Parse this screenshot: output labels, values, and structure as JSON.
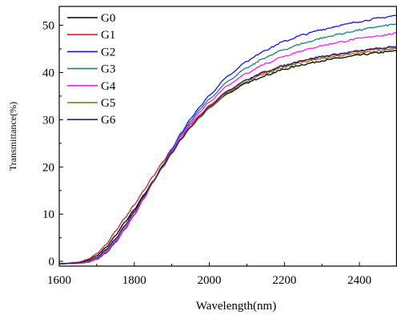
{
  "chart_data": {
    "type": "line",
    "title": "",
    "xlabel": "Wavelength(nm)",
    "ylabel": "Transmittance(%)",
    "xlim": [
      1600,
      2500
    ],
    "ylim": [
      -1,
      54
    ],
    "xticks": [
      1600,
      1800,
      2000,
      2200,
      2400
    ],
    "yticks": [
      0,
      10,
      20,
      30,
      40,
      50
    ],
    "grid": false,
    "legend_position": "top-left",
    "x": [
      1600,
      1650,
      1675,
      1700,
      1725,
      1750,
      1775,
      1800,
      1825,
      1850,
      1875,
      1900,
      1925,
      1950,
      1975,
      2000,
      2050,
      2100,
      2150,
      2200,
      2250,
      2300,
      2350,
      2400,
      2450,
      2500
    ],
    "series": [
      {
        "name": "G0",
        "color": "#000000",
        "values": [
          -0.5,
          -0.3,
          0.3,
          1.2,
          3.0,
          5.5,
          8.3,
          11.0,
          14.0,
          17.0,
          20.0,
          23.0,
          26.0,
          28.4,
          30.5,
          32.5,
          35.6,
          37.8,
          39.4,
          40.7,
          41.7,
          42.5,
          43.1,
          43.7,
          44.2,
          44.6
        ]
      },
      {
        "name": "G1",
        "color": "#e41a1c",
        "values": [
          -0.5,
          -0.2,
          0.4,
          1.6,
          3.6,
          6.4,
          9.2,
          12.0,
          15.0,
          18.0,
          21.0,
          23.8,
          26.5,
          28.9,
          31.0,
          33.0,
          36.2,
          38.5,
          40.2,
          41.5,
          42.5,
          43.3,
          43.9,
          44.5,
          45.0,
          45.4
        ]
      },
      {
        "name": "G2",
        "color": "#1414e6",
        "values": [
          -0.5,
          -0.4,
          -0.2,
          0.4,
          1.8,
          4.0,
          6.8,
          9.8,
          13.2,
          16.8,
          20.3,
          23.8,
          27.2,
          30.2,
          32.8,
          35.2,
          39.3,
          42.4,
          44.8,
          46.6,
          48.0,
          49.1,
          50.0,
          50.8,
          51.5,
          52.1
        ]
      },
      {
        "name": "G3",
        "color": "#17857b",
        "values": [
          -0.5,
          -0.4,
          -0.1,
          0.6,
          2.1,
          4.3,
          7.0,
          10.0,
          13.3,
          16.8,
          20.2,
          23.6,
          26.9,
          29.7,
          32.2,
          34.4,
          38.2,
          41.0,
          43.2,
          44.9,
          46.2,
          47.3,
          48.2,
          49.0,
          49.7,
          50.3
        ]
      },
      {
        "name": "G4",
        "color": "#ff19ff",
        "values": [
          -0.5,
          -0.4,
          -0.1,
          0.5,
          2.0,
          4.2,
          6.9,
          9.9,
          13.2,
          16.7,
          20.1,
          23.4,
          26.6,
          29.3,
          31.7,
          33.8,
          37.3,
          39.9,
          41.9,
          43.5,
          44.7,
          45.7,
          46.5,
          47.2,
          47.8,
          48.3
        ]
      },
      {
        "name": "G5",
        "color": "#8b7500",
        "values": [
          -0.5,
          -0.3,
          0.0,
          0.7,
          2.3,
          4.6,
          7.4,
          10.4,
          13.6,
          16.8,
          19.8,
          22.8,
          25.8,
          28.3,
          30.5,
          32.5,
          35.8,
          38.1,
          39.8,
          41.1,
          42.2,
          43.0,
          43.6,
          44.1,
          44.6,
          45.0
        ]
      },
      {
        "name": "G6",
        "color": "#1a237e",
        "values": [
          -0.5,
          -0.3,
          0.1,
          0.8,
          2.5,
          4.8,
          7.6,
          10.6,
          13.8,
          17.0,
          20.1,
          23.1,
          26.0,
          28.5,
          30.7,
          32.8,
          36.1,
          38.5,
          40.2,
          41.5,
          42.6,
          43.4,
          44.0,
          44.6,
          45.1,
          45.5
        ]
      }
    ]
  }
}
